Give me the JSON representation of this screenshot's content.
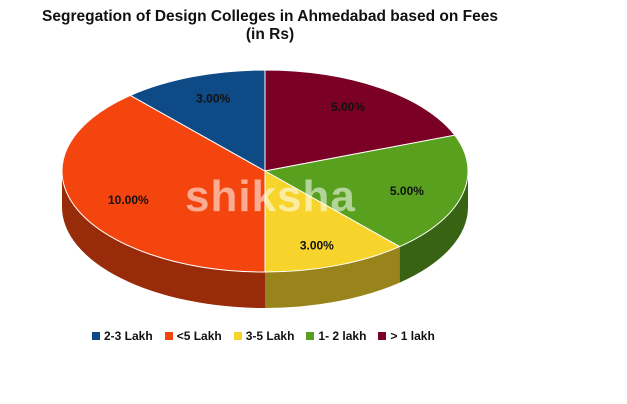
{
  "chart_data": {
    "type": "pie",
    "title_line1": "Segregation of Design Colleges in Ahmedabad based on Fees",
    "title_line2": "(in Rs)",
    "slices": [
      {
        "name": "2-3 Lakh",
        "value": 3.0,
        "label": "3.00%",
        "color": "#0e4a86"
      },
      {
        "name": "<5 Lakh",
        "value": 10.0,
        "label": "10.00%",
        "color": "#f5450f"
      },
      {
        "name": "3-5 Lakh",
        "value": 3.0,
        "label": "3.00%",
        "color": "#f7d42b"
      },
      {
        "name": "1- 2 lakh",
        "value": 5.0,
        "label": "5.00%",
        "color": "#58a01e"
      },
      {
        "name": "> 1 lakh",
        "value": 5.0,
        "label": "5.00%",
        "color": "#7a0026"
      }
    ],
    "display_order": [
      "> 1 lakh",
      "1- 2 lakh",
      "3-5 Lakh",
      "<5 Lakh",
      "2-3 Lakh"
    ],
    "legend_placement": "bottom"
  },
  "watermark": {
    "brand": "shiksha"
  }
}
